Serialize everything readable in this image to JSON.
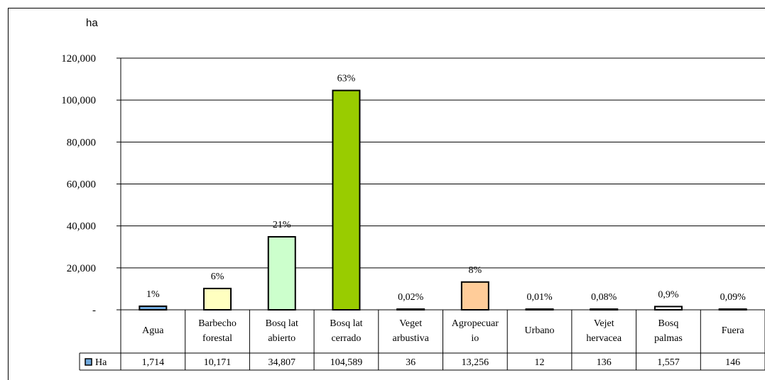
{
  "chart_data": {
    "type": "bar",
    "ylabel": "ha",
    "ylim": [
      0,
      120000
    ],
    "yticks": [
      "-",
      "20,000",
      "40,000",
      "60,000",
      "80,000",
      "100,000",
      "120,000"
    ],
    "grid": true,
    "categories": [
      [
        "Agua"
      ],
      [
        "Barbecho",
        "forestal"
      ],
      [
        "Bosq lat",
        "abierto"
      ],
      [
        "Bosq lat",
        "cerrado"
      ],
      [
        "Veget",
        "arbustiva"
      ],
      [
        "Agropecuar",
        "io"
      ],
      [
        "Urbano"
      ],
      [
        "Vejet",
        "hervacea"
      ],
      [
        "Bosq",
        "palmas"
      ],
      [
        "Fuera"
      ]
    ],
    "values": [
      1714,
      10171,
      34807,
      104589,
      36,
      13256,
      12,
      136,
      1557,
      146
    ],
    "value_labels": [
      "1,714",
      "10,171",
      "34,807",
      "104,589",
      "36",
      "13,256",
      "12",
      "136",
      "1,557",
      "146"
    ],
    "percent_labels": [
      "1%",
      "6%",
      "21%",
      "63%",
      "0,02%",
      "8%",
      "0,01%",
      "0,08%",
      "0,9%",
      "0,09%"
    ],
    "colors": [
      "#6fa8dc",
      "#ffffc0",
      "#ccffcc",
      "#99cc00",
      "#ffffff",
      "#ffcc99",
      "#ffffff",
      "#ffffff",
      "#ffffff",
      "#ffffff"
    ],
    "series": [
      {
        "name": "Ha",
        "color": "#6fa8dc"
      }
    ],
    "legend": "data-table-left"
  }
}
